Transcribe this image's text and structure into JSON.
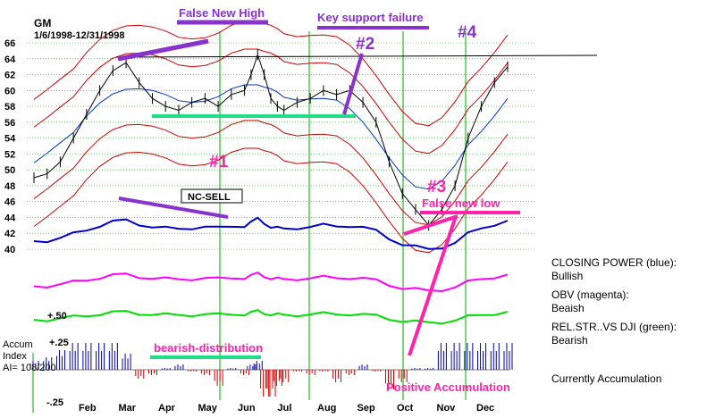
{
  "chart_data": {
    "type": "line",
    "title": "GM",
    "subtitle": "1/6/1998-12/31/1998",
    "months": [
      "Feb",
      "Mar",
      "Apr",
      "May",
      "Jun",
      "Jul",
      "Aug",
      "Sep",
      "Oct",
      "Nov",
      "Dec"
    ],
    "y_ticks": [
      66,
      64,
      62,
      60,
      58,
      56,
      54,
      52,
      50,
      48,
      46,
      44,
      42,
      40
    ],
    "ylim": [
      40,
      66
    ],
    "price_series": {
      "name": "",
      "x": [
        0,
        10,
        20,
        30,
        40,
        50,
        60,
        70,
        80,
        90,
        100,
        110,
        120,
        130,
        140,
        150,
        160,
        165,
        170,
        175,
        180,
        185,
        190,
        200,
        210,
        220,
        230,
        240,
        250,
        260,
        270,
        280,
        290,
        300,
        310,
        320,
        330,
        340,
        350,
        360
      ],
      "close": [
        49,
        49.5,
        51,
        54,
        57,
        60,
        62.5,
        63.5,
        61,
        59,
        58,
        57.5,
        58.5,
        59,
        58,
        59.5,
        60,
        62,
        64.5,
        62,
        59,
        58,
        57.5,
        58.5,
        59,
        60,
        59.5,
        60,
        58.5,
        56,
        51,
        47,
        45,
        43,
        45,
        48,
        54,
        58,
        61,
        63
      ]
    },
    "indicators": [
      {
        "name": "CLOSING POWER (blue):",
        "status": "Bullish",
        "color": "#0000cc"
      },
      {
        "name": "OBV (magenta):",
        "status": "Beaish",
        "color": "#ff00ff"
      },
      {
        "name": "REL.STR..VS DJI (green):",
        "status": "Bearish",
        "color": "#00dd00"
      }
    ],
    "accum": {
      "label1": "Accum",
      "label2": "Index",
      "label3": "AI= 108/200",
      "tick_high": "+.25",
      "tick_mid": "+.50",
      "tick_low": "-.25",
      "status": "Currently Accumulation"
    },
    "annotations": {
      "false_new_high": "False New High",
      "key_support_failure": "Key support failure",
      "n1": "#1",
      "n2": "#2",
      "n3": "#3",
      "n4": "#4",
      "nc_sell": "NC-SELL",
      "false_new_low": "False new low",
      "bearish_distribution": "bearish-distribution",
      "positive_accumulation": "Positive Accumulation"
    },
    "colors": {
      "price": "#000000",
      "bands": "#cc0000",
      "ma": "#0033cc",
      "annotation": "#8833cc",
      "pink": "#ff22aa",
      "support": "#22dd88",
      "grid": "#00aa00"
    },
    "grid": true
  }
}
